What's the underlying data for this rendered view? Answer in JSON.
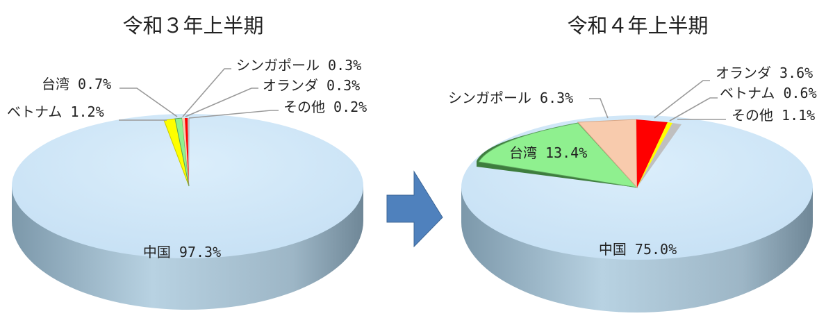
{
  "colors": {
    "china": "#cfe6f8",
    "yellow": "#ffff00",
    "green": "#8ff08f",
    "red": "#ff0000",
    "peach": "#f8cbad",
    "gray": "#bfbfbf",
    "arrow": "#4f81bd"
  },
  "chart_data": [
    {
      "type": "pie",
      "title": "令和３年上半期",
      "slices": [
        {
          "name": "中国",
          "value": 97.3,
          "label": "中国 97.3%"
        },
        {
          "name": "ベトナム",
          "value": 1.2,
          "label": "ベトナム 1.2%"
        },
        {
          "name": "台湾",
          "value": 0.7,
          "label": "台湾 0.7%"
        },
        {
          "name": "シンガポール",
          "value": 0.3,
          "label": "シンガポール 0.3%"
        },
        {
          "name": "オランダ",
          "value": 0.3,
          "label": "オランダ 0.3%"
        },
        {
          "name": "その他",
          "value": 0.2,
          "label": "その他 0.2%"
        }
      ]
    },
    {
      "type": "pie",
      "title": "令和４年上半期",
      "slices": [
        {
          "name": "中国",
          "value": 75.0,
          "label": "中国 75.0%"
        },
        {
          "name": "台湾",
          "value": 13.4,
          "label": "台湾 13.4%"
        },
        {
          "name": "シンガポール",
          "value": 6.3,
          "label": "シンガポール 6.3%"
        },
        {
          "name": "オランダ",
          "value": 3.6,
          "label": "オランダ 3.6%"
        },
        {
          "name": "ベトナム",
          "value": 0.6,
          "label": "ベトナム 0.6%"
        },
        {
          "name": "その他",
          "value": 1.1,
          "label": "その他 1.1%"
        }
      ]
    }
  ]
}
